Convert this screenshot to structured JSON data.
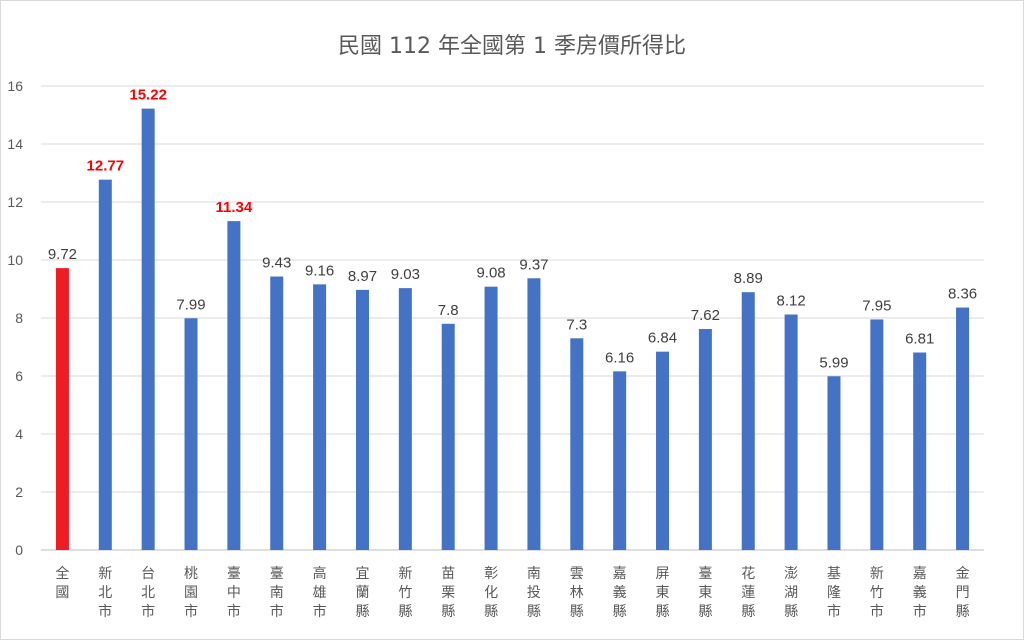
{
  "chart_data": {
    "type": "bar",
    "title": "民國 112 年全國第 1 季房價所得比",
    "xlabel": "",
    "ylabel": "",
    "ylim": [
      0,
      16
    ],
    "yticks": [
      0,
      2,
      4,
      6,
      8,
      10,
      12,
      14,
      16
    ],
    "grid": true,
    "legend": "none",
    "categories": [
      "全國",
      "新北市",
      "台北市",
      "桃園市",
      "臺中市",
      "臺南市",
      "高雄市",
      "宜蘭縣",
      "新竹縣",
      "苗栗縣",
      "彰化縣",
      "南投縣",
      "雲林縣",
      "嘉義縣",
      "屏東縣",
      "臺東縣",
      "花蓮縣",
      "澎湖縣",
      "基隆市",
      "新竹市",
      "嘉義市",
      "金門縣"
    ],
    "values": [
      9.72,
      12.77,
      15.22,
      7.99,
      11.34,
      9.43,
      9.16,
      8.97,
      9.03,
      7.8,
      9.08,
      9.37,
      7.3,
      6.16,
      6.84,
      7.62,
      8.89,
      8.12,
      5.99,
      7.95,
      6.81,
      8.36
    ],
    "data_labels": [
      "9.72",
      "12.77",
      "15.22",
      "7.99",
      "11.34",
      "9.43",
      "9.16",
      "8.97",
      "9.03",
      "7.8",
      "9.08",
      "9.37",
      "7.3",
      "6.16",
      "6.84",
      "7.62",
      "8.89",
      "8.12",
      "5.99",
      "7.95",
      "6.81",
      "8.36"
    ],
    "highlight_labels": [
      1,
      2,
      4
    ],
    "colors": {
      "bar": "#4472c4",
      "national_bar": "#ee1c25",
      "highlight_label": "#ff0000"
    }
  }
}
